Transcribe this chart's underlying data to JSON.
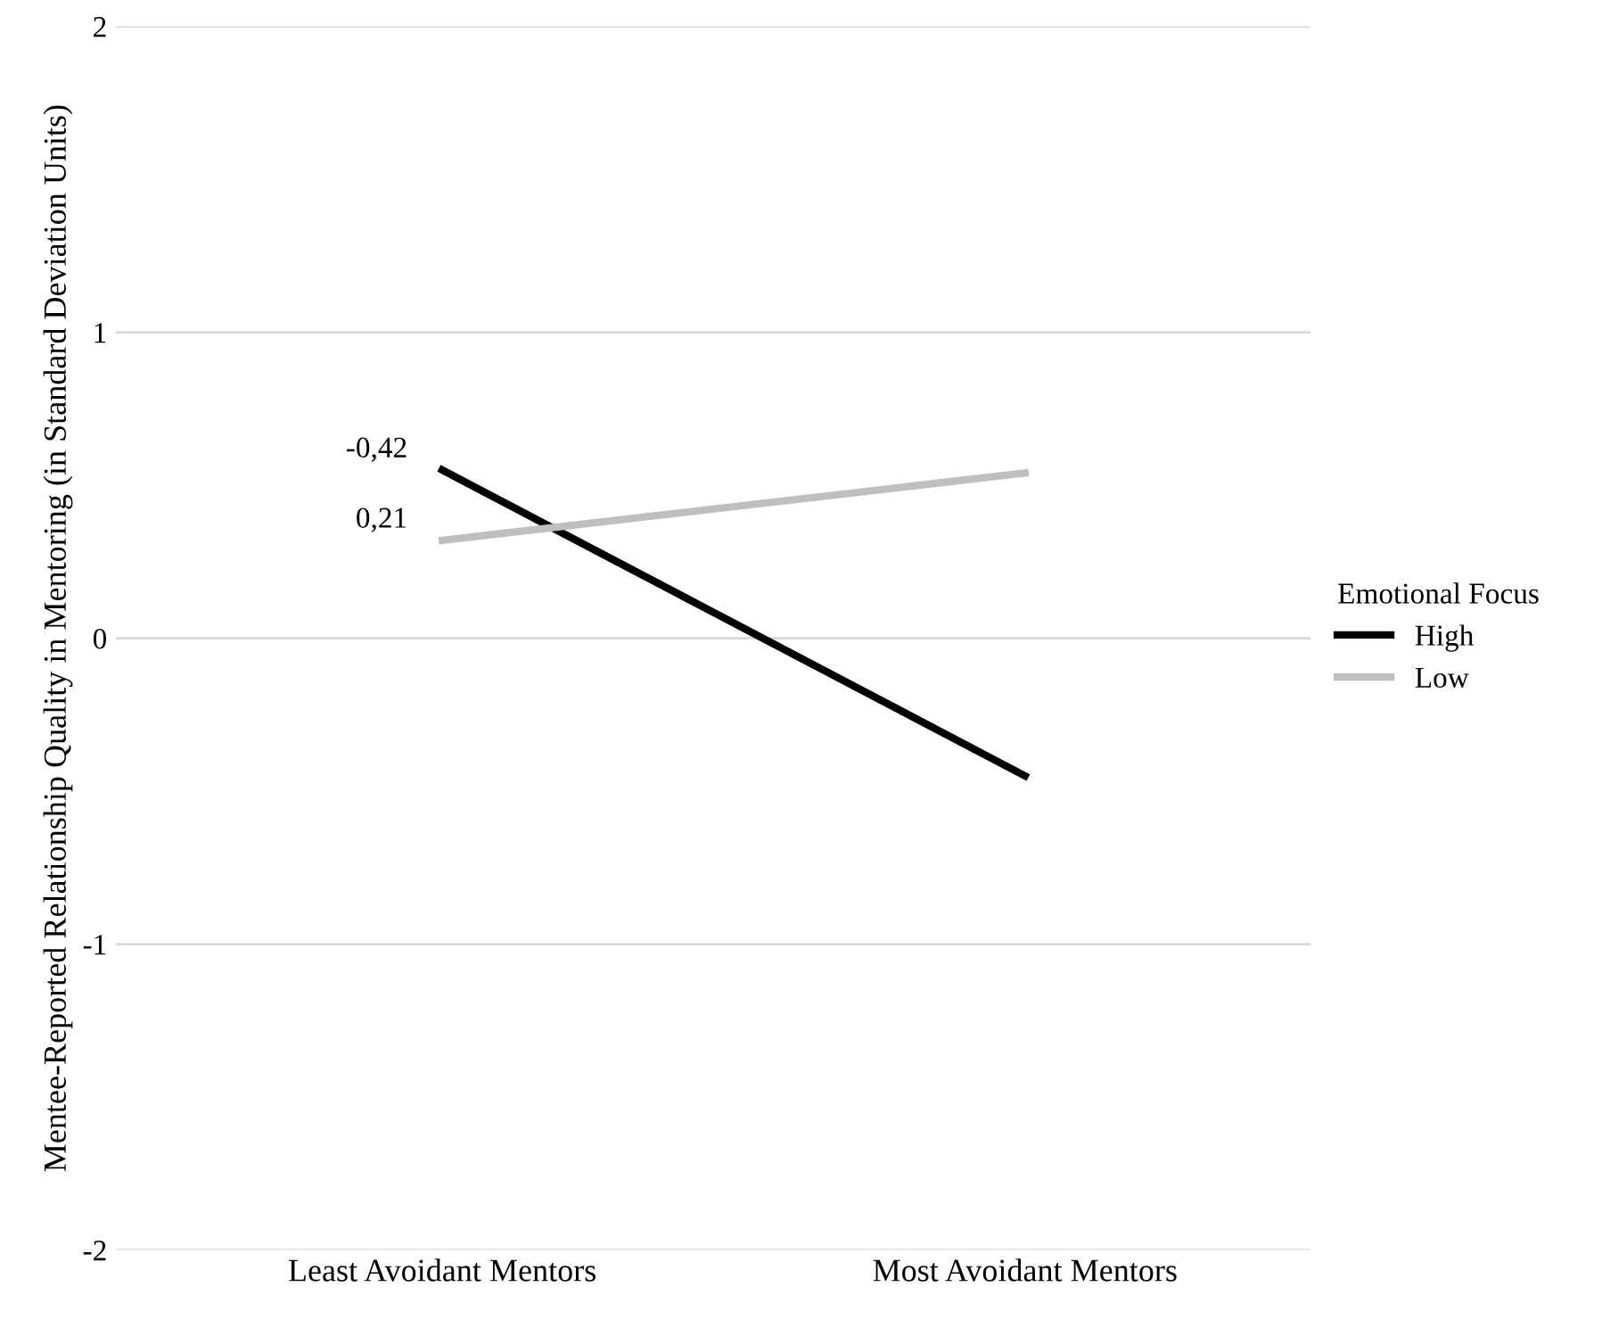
{
  "chart_data": {
    "type": "line",
    "ylabel": "Mentee-Reported Relationship Quality in Mentoring (in Standard Deviation Units)",
    "legend_title": "Emotional Focus",
    "categories": [
      "Least Avoidant Mentors",
      "Most Avoidant Mentors"
    ],
    "series": [
      {
        "name": "High",
        "color": "#000000",
        "values": [
          0.55,
          -0.45
        ]
      },
      {
        "name": "Low",
        "color": "#bfbfbf",
        "values": [
          0.32,
          0.54
        ]
      }
    ],
    "ylim": [
      -2,
      2
    ],
    "yticks": [
      {
        "value": -2,
        "label": "-2"
      },
      {
        "value": -1,
        "label": "-1"
      },
      0,
      1,
      2
    ],
    "grid": "y",
    "legend": "right",
    "marker": "none",
    "line_style": "solid",
    "annotations": [
      {
        "text": "-0,42",
        "x": "Least Avoidant Mentors",
        "y": 0.55
      },
      {
        "text": "0,21",
        "x": "Least Avoidant Mentors",
        "y": 0.32
      }
    ]
  }
}
